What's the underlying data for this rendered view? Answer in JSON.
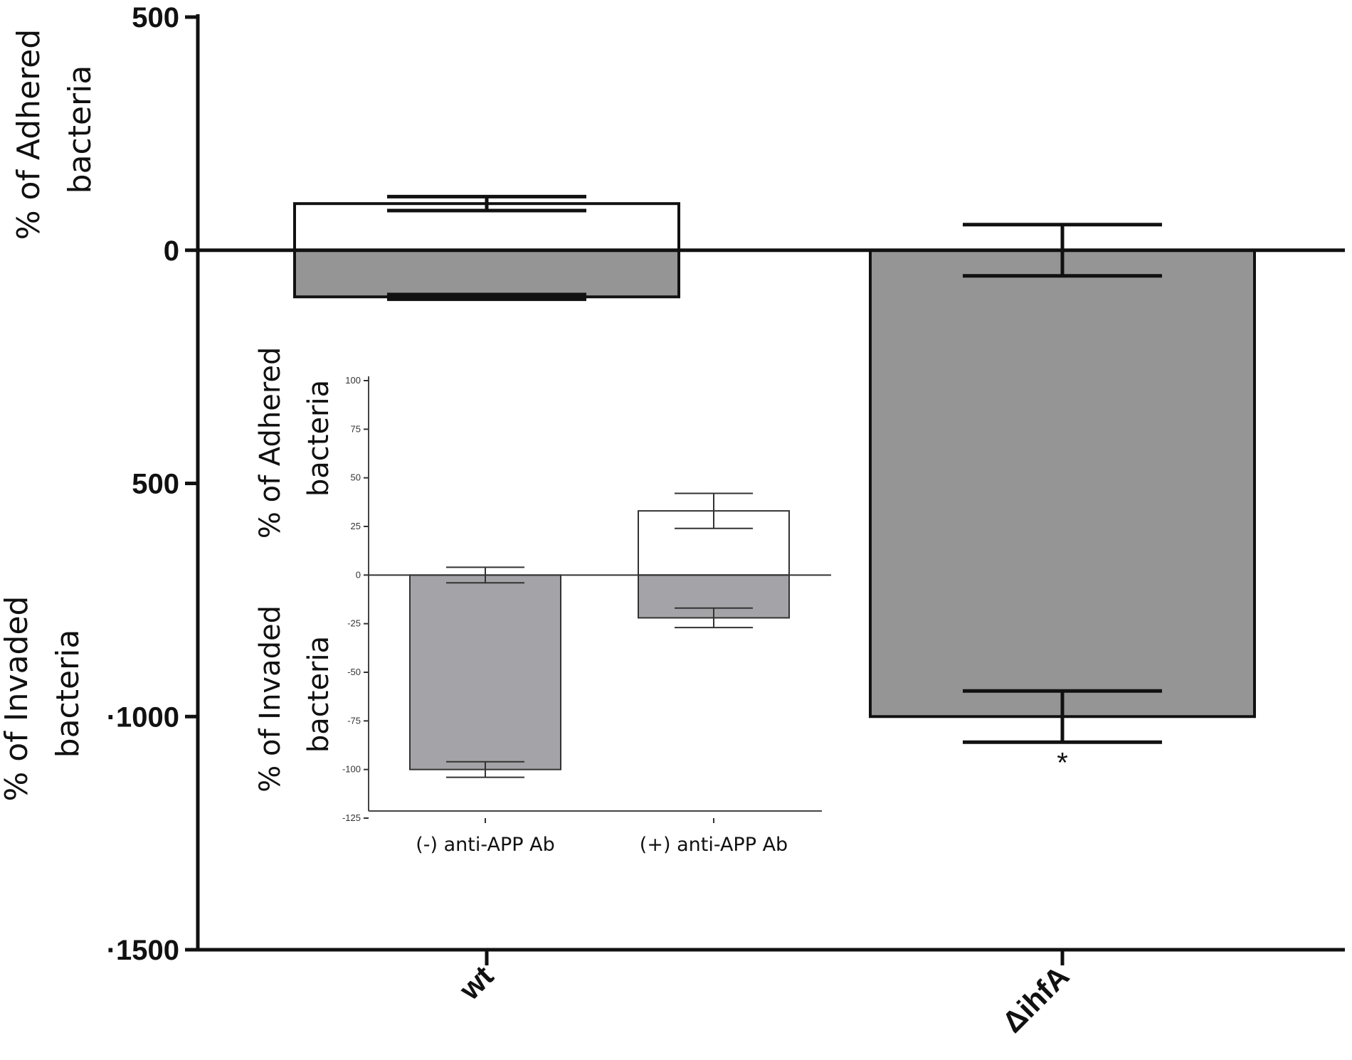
{
  "colors": {
    "axis": "#111111",
    "open_bar": "#ffffff",
    "main_filled_bar": "#959595",
    "inset_filled_bar": "#a4a4a8"
  },
  "chart_data": [
    {
      "type": "bar",
      "role": "main",
      "categories": [
        "wt",
        "ΔihfA"
      ],
      "ylim": [
        -1500,
        500
      ],
      "ytick_labels": [
        "500",
        "0",
        "500",
        "·1000",
        "·1500"
      ],
      "ytick_values": [
        500,
        0,
        -500,
        -1000,
        -1500
      ],
      "ylabel_top": "% of Adhered bacteria",
      "ylabel_bottom": "% of Invaded bacteria",
      "series": [
        {
          "color": "#ffffff",
          "values": [
            100,
            0
          ],
          "errors": [
            15,
            55
          ]
        },
        {
          "color": "#959595",
          "values": [
            -100,
            -1000
          ],
          "errors": [
            5,
            55
          ]
        }
      ],
      "annotations": [
        {
          "category": "ΔihfA",
          "text": "*"
        }
      ]
    },
    {
      "type": "bar",
      "role": "inset",
      "categories": [
        "(-) anti-APP Ab",
        "(+) anti-APP Ab"
      ],
      "ylim": [
        -125,
        100
      ],
      "ytick_labels": [
        "100",
        "75",
        "50",
        "25",
        "0",
        "-25",
        "-50",
        "-75",
        "-100",
        "-125"
      ],
      "ytick_values": [
        100,
        75,
        50,
        25,
        0,
        -25,
        -50,
        -75,
        -100,
        -125
      ],
      "ylabel_top": "% of Adhered bacteria",
      "ylabel_bottom": "% of Invaded bacteria",
      "series": [
        {
          "color": "#ffffff",
          "values": [
            0,
            33
          ],
          "errors": [
            4,
            9
          ]
        },
        {
          "color": "#a4a4a8",
          "values": [
            -100,
            -22
          ],
          "errors": [
            4,
            5
          ]
        }
      ]
    }
  ]
}
